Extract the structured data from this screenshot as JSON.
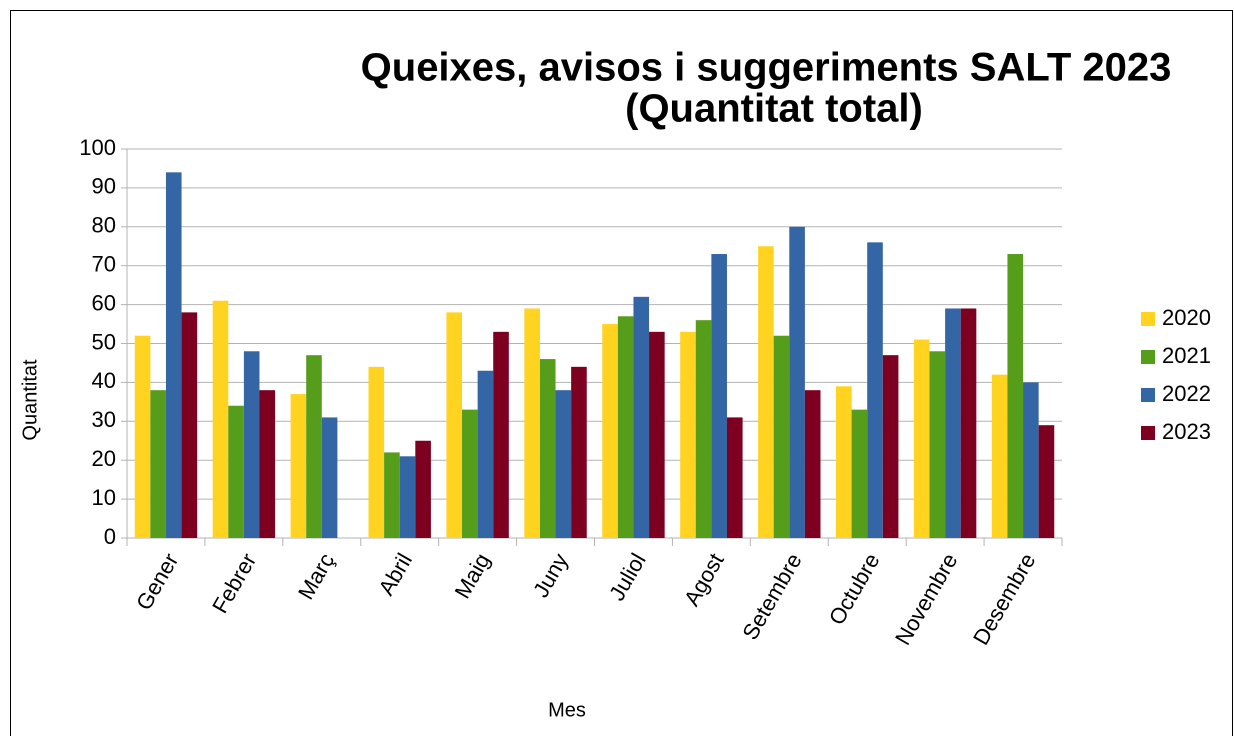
{
  "chart_data": {
    "type": "bar",
    "title": "Queixes, avisos i suggeriments SALT 2023",
    "subtitle": "(Quantitat total)",
    "x_label": "Mes",
    "y_label": "Quantitat",
    "categories": [
      "Gener",
      "Febrer",
      "Març",
      "Abril",
      "Maig",
      "Juny",
      "Juliol",
      "Agost",
      "Setembre",
      "Octubre",
      "Novembre",
      "Desembre"
    ],
    "series": [
      {
        "name": "2020",
        "color": "#ffd320",
        "values": [
          52,
          61,
          37,
          44,
          58,
          59,
          55,
          53,
          75,
          39,
          51,
          42
        ]
      },
      {
        "name": "2021",
        "color": "#579d1c",
        "values": [
          38,
          34,
          47,
          22,
          33,
          46,
          57,
          56,
          52,
          33,
          48,
          73
        ]
      },
      {
        "name": "2022",
        "color": "#3465a4",
        "values": [
          94,
          48,
          31,
          21,
          43,
          38,
          62,
          73,
          80,
          76,
          59,
          40
        ]
      },
      {
        "name": "2023",
        "color": "#7e0021",
        "values": [
          58,
          38,
          0,
          25,
          53,
          44,
          53,
          31,
          38,
          47,
          59,
          29
        ]
      }
    ],
    "ylim": [
      0,
      100
    ],
    "yticks": [
      0,
      10,
      20,
      30,
      40,
      50,
      60,
      70,
      80,
      90,
      100
    ],
    "grid": true,
    "legend": "right"
  }
}
